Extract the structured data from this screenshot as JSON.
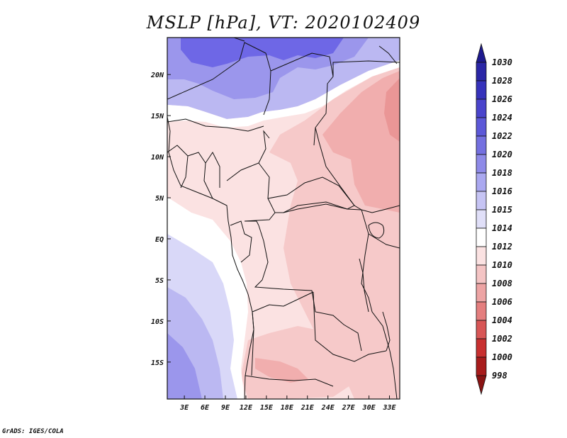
{
  "title": "MSLP [hPa], VT: 2020102409",
  "credit": "GrADS: IGES/COLA",
  "axes": {
    "lat_labels": [
      "20N",
      "15N",
      "10N",
      "5N",
      "EQ",
      "5S",
      "10S",
      "15S"
    ],
    "lat_values": [
      20,
      15,
      10,
      5,
      0,
      -5,
      -10,
      -15
    ],
    "lon_labels": [
      "3E",
      "6E",
      "9E",
      "12E",
      "15E",
      "18E",
      "21E",
      "24E",
      "27E",
      "30E",
      "33E"
    ],
    "lon_values": [
      3,
      6,
      9,
      12,
      15,
      18,
      21,
      24,
      27,
      30,
      33
    ],
    "lat_range": [
      -19.5,
      24.5
    ],
    "lon_range": [
      0.5,
      34.5
    ]
  },
  "colorbar": {
    "labels": [
      "1030",
      "1028",
      "1026",
      "1024",
      "1022",
      "1020",
      "1018",
      "1016",
      "1015",
      "1014",
      "1012",
      "1010",
      "1008",
      "1006",
      "1004",
      "1002",
      "1000",
      "998"
    ],
    "colors": [
      "#1e1a8f",
      "#2a26a6",
      "#3632bb",
      "#4a44cc",
      "#5c58d8",
      "#7470e0",
      "#8e8ae8",
      "#aaa8f0",
      "#c6c4f4",
      "#e0dff8",
      "#ffffff",
      "#fbe2e2",
      "#f4c4c4",
      "#eda4a4",
      "#e47e7e",
      "#d85656",
      "#c83030",
      "#a81c1c",
      "#8a1414"
    ]
  },
  "colors": {
    "strong_blue": "#6e67e6",
    "mid_blue": "#9b96ec",
    "light_blue": "#bbb8f2",
    "pale_blue": "#d9d8f8",
    "white": "#ffffff",
    "pale_pink": "#fbe2e2",
    "light_pink": "#f6c9c9",
    "mid_pink": "#f1aeae",
    "strong_pink": "#ea9696"
  }
}
